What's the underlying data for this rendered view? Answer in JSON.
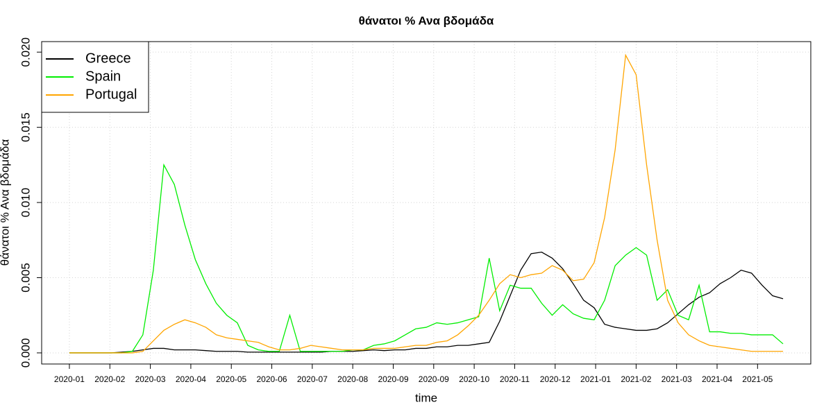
{
  "chart_data": {
    "type": "line",
    "title": "θάνατοι %  Ανα βδομάδα",
    "x_label": "time",
    "y_label": "θάνατοι %  Ανα βδομάδα",
    "x": [
      0,
      7,
      14,
      21,
      28,
      35,
      42,
      49,
      56,
      63,
      70,
      77,
      84,
      91,
      98,
      105,
      112,
      119,
      126,
      133,
      140,
      147,
      154,
      161,
      168,
      175,
      182,
      189,
      196,
      203,
      210,
      217,
      224,
      231,
      238,
      245,
      252,
      259,
      266,
      273,
      280,
      287,
      294,
      301,
      308,
      315,
      322,
      329,
      336,
      343,
      350,
      357,
      364,
      371,
      378,
      385,
      392,
      399,
      406,
      413,
      420,
      427,
      434,
      441,
      448,
      455,
      462,
      469,
      476
    ],
    "series": [
      {
        "name": "Greece",
        "color": "#000000",
        "values": [
          0,
          0,
          0,
          0,
          0,
          5e-05,
          0.0001,
          0.0002,
          0.0003,
          0.0003,
          0.0002,
          0.0002,
          0.0002,
          0.00015,
          0.0001,
          0.0001,
          0.0001,
          5e-05,
          5e-05,
          5e-05,
          5e-05,
          5e-05,
          5e-05,
          5e-05,
          5e-05,
          0.0001,
          0.0001,
          0.0001,
          0.00015,
          0.0002,
          0.00015,
          0.0002,
          0.0002,
          0.0003,
          0.0003,
          0.0004,
          0.0004,
          0.0005,
          0.0005,
          0.0006,
          0.0007,
          0.0021,
          0.0038,
          0.0055,
          0.0066,
          0.0067,
          0.0063,
          0.0056,
          0.0046,
          0.0035,
          0.003,
          0.0019,
          0.0017,
          0.0016,
          0.0015,
          0.0015,
          0.0016,
          0.002,
          0.0026,
          0.0032,
          0.0037,
          0.004,
          0.0046,
          0.005,
          0.0055,
          0.0053,
          0.0045,
          0.0038,
          0.0036
        ]
      },
      {
        "name": "Spain",
        "color": "#00ee00",
        "values": [
          0,
          0,
          0,
          0,
          0,
          0,
          0.0001,
          0.0012,
          0.0055,
          0.0125,
          0.0112,
          0.0085,
          0.0062,
          0.0046,
          0.0033,
          0.0025,
          0.002,
          0.0005,
          0.0002,
          0.0001,
          0.0001,
          0.0025,
          0.0001,
          0.0001,
          0.0001,
          0.0001,
          0.0001,
          0.0002,
          0.0002,
          0.0005,
          0.0006,
          0.0008,
          0.0012,
          0.0016,
          0.0017,
          0.002,
          0.0019,
          0.002,
          0.0022,
          0.0024,
          0.0063,
          0.0028,
          0.0045,
          0.0043,
          0.0043,
          0.0033,
          0.0025,
          0.0032,
          0.0026,
          0.0023,
          0.0022,
          0.0035,
          0.0058,
          0.0065,
          0.007,
          0.0065,
          0.0035,
          0.0042,
          0.0025,
          0.0022,
          0.0045,
          0.0014,
          0.0014,
          0.0013,
          0.0013,
          0.0012,
          0.0012,
          0.0012,
          0.0006
        ]
      },
      {
        "name": "Portugal",
        "color": "#ffa500",
        "values": [
          0,
          0,
          0,
          0,
          0,
          0,
          0,
          0.0001,
          0.0008,
          0.0015,
          0.0019,
          0.0022,
          0.002,
          0.0017,
          0.0012,
          0.001,
          0.0009,
          0.0008,
          0.0007,
          0.0004,
          0.0002,
          0.0002,
          0.0003,
          0.0005,
          0.0004,
          0.0003,
          0.0002,
          0.0002,
          0.0002,
          0.0003,
          0.0003,
          0.0003,
          0.0004,
          0.0005,
          0.0005,
          0.0007,
          0.0008,
          0.0012,
          0.0018,
          0.0025,
          0.0035,
          0.0046,
          0.0052,
          0.005,
          0.0052,
          0.0053,
          0.0058,
          0.0055,
          0.0048,
          0.0049,
          0.006,
          0.009,
          0.0135,
          0.0198,
          0.0185,
          0.0125,
          0.0075,
          0.0035,
          0.002,
          0.0012,
          0.0008,
          0.0005,
          0.0004,
          0.0003,
          0.0002,
          0.0001,
          0.0001,
          0.0001,
          0.0001
        ]
      }
    ],
    "xlim": [
      -18.5,
      494.5
    ],
    "ylim": [
      -0.00074,
      0.0207
    ],
    "xticks": [
      {
        "value": 0,
        "label": "2020-01"
      },
      {
        "value": 27,
        "label": "2020-02"
      },
      {
        "value": 54,
        "label": "2020-03"
      },
      {
        "value": 81,
        "label": "2020-04"
      },
      {
        "value": 108,
        "label": "2020-05"
      },
      {
        "value": 135,
        "label": "2020-06"
      },
      {
        "value": 162,
        "label": "2020-07"
      },
      {
        "value": 189,
        "label": "2020-08"
      },
      {
        "value": 216,
        "label": "2020-09"
      },
      {
        "value": 243,
        "label": "2020-09"
      },
      {
        "value": 270,
        "label": "2020-10"
      },
      {
        "value": 297,
        "label": "2020-11"
      },
      {
        "value": 324,
        "label": "2020-12"
      },
      {
        "value": 351,
        "label": "2021-01"
      },
      {
        "value": 378,
        "label": "2021-02"
      },
      {
        "value": 405,
        "label": "2021-03"
      },
      {
        "value": 432,
        "label": "2021-04"
      },
      {
        "value": 459,
        "label": "2021-05"
      }
    ],
    "yticks": [
      {
        "value": 0,
        "label": "0.000"
      },
      {
        "value": 0.005,
        "label": "0.005"
      },
      {
        "value": 0.01,
        "label": "0.010"
      },
      {
        "value": 0.015,
        "label": "0.015"
      },
      {
        "value": 0.02,
        "label": "0.020"
      }
    ],
    "grid": true,
    "legend": "top-left"
  }
}
